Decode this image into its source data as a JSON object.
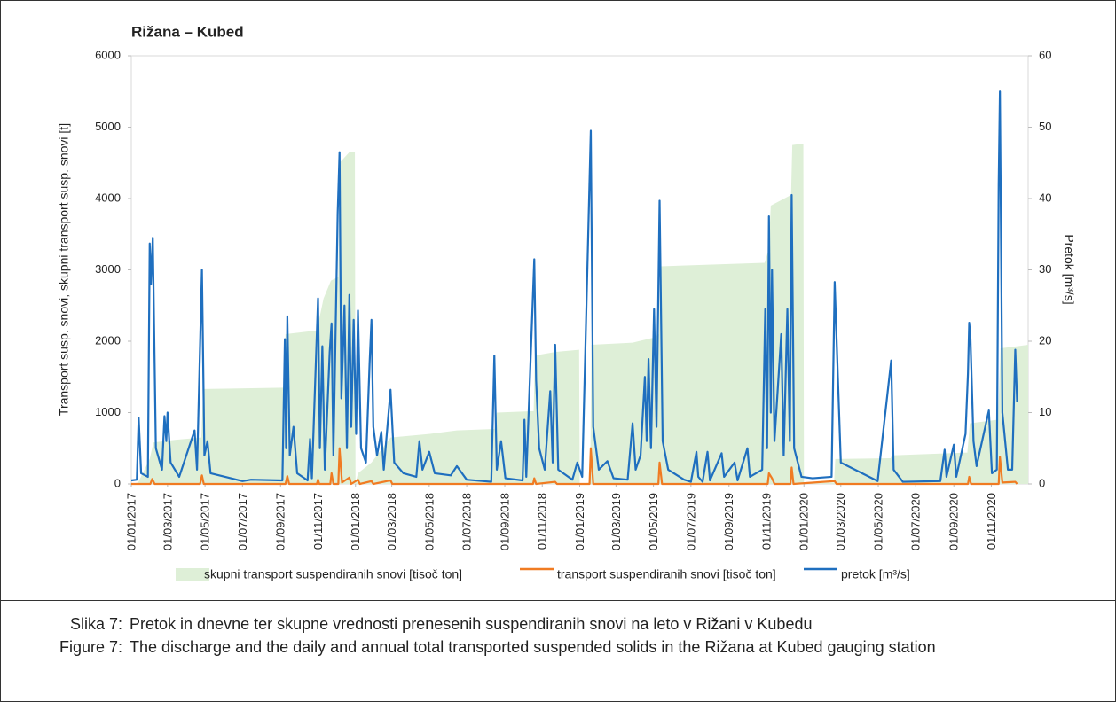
{
  "chart_data": {
    "type": "line",
    "title": "Rižana – Kubed",
    "ylabel": "Transport susp. snovi, skupni transport susp. snovi [t]",
    "y2label": "Pretok [m³/s]",
    "xlim": [
      "01/01/2017",
      "31/12/2020"
    ],
    "xticks": [
      "01/01/2017",
      "01/03/2017",
      "01/05/2017",
      "01/07/2017",
      "01/09/2017",
      "01/11/2017",
      "01/01/2018",
      "01/03/2018",
      "01/05/2018",
      "01/07/2018",
      "01/09/2018",
      "01/11/2018",
      "01/01/2019",
      "01/03/2019",
      "01/05/2019",
      "01/07/2019",
      "01/09/2019",
      "01/11/2019",
      "01/01/2020",
      "01/03/2020",
      "01/05/2020",
      "01/07/2020",
      "01/09/2020",
      "01/11/2020"
    ],
    "ylim": [
      0,
      6000
    ],
    "yticks": [
      0,
      1000,
      2000,
      3000,
      4000,
      5000,
      6000
    ],
    "y2lim": [
      0,
      60
    ],
    "y2ticks": [
      0,
      10,
      20,
      30,
      40,
      50,
      60
    ],
    "series": [
      {
        "name": "skupni transport suspendiranih snovi [tisoč ton]",
        "kind": "area",
        "color": "#deefd7",
        "x": [
          "01/01/2017",
          "12/01/2017",
          "31/01/2017",
          "06/02/2017",
          "15/03/2017",
          "25/04/2017",
          "28/04/2017",
          "07/09/2017",
          "09/09/2017",
          "30/10/2017",
          "10/11/2017",
          "22/11/2017",
          "04/12/2017",
          "06/12/2017",
          "22/12/2017",
          "31/12/2017",
          "01/01/2018",
          "05/01/2018",
          "27/01/2018",
          "27/02/2018",
          "01/05/2018",
          "15/06/2018",
          "15/08/2018",
          "19/08/2018",
          "18/10/2018",
          "20/10/2018",
          "22/11/2018",
          "31/12/2018",
          "01/01/2019",
          "18/01/2019",
          "20/01/2019",
          "28/03/2019",
          "01/05/2019",
          "10/05/2019",
          "12/05/2019",
          "29/10/2019",
          "05/11/2019",
          "08/11/2019",
          "11/12/2019",
          "13/12/2019",
          "31/12/2019",
          "01/01/2020",
          "19/02/2020",
          "21/02/2020",
          "21/05/2020",
          "23/05/2020",
          "23/09/2020",
          "27/09/2020",
          "12/11/2020",
          "16/11/2020",
          "31/12/2020"
        ],
        "values": [
          0,
          20,
          350,
          580,
          620,
          650,
          1330,
          1350,
          2100,
          2150,
          2600,
          2850,
          2900,
          4500,
          4650,
          4650,
          0,
          150,
          300,
          650,
          700,
          750,
          770,
          1000,
          1020,
          1800,
          1850,
          1880,
          0,
          20,
          1950,
          1980,
          2050,
          2100,
          3050,
          3100,
          3300,
          3900,
          4050,
          4750,
          4770,
          0,
          20,
          350,
          360,
          400,
          440,
          850,
          900,
          1900,
          1950
        ]
      },
      {
        "name": "transport suspendiranih snovi [tisoč ton]",
        "kind": "line",
        "color": "#f07b22",
        "x": [
          "01/01/2017",
          "01/02/2017",
          "04/02/2017",
          "08/02/2017",
          "23/04/2017",
          "26/04/2017",
          "29/04/2017",
          "09/09/2017",
          "12/09/2017",
          "15/09/2017",
          "30/10/2017",
          "01/11/2017",
          "03/11/2017",
          "21/11/2017",
          "23/11/2017",
          "26/11/2017",
          "04/12/2017",
          "06/12/2017",
          "10/12/2017",
          "22/12/2017",
          "25/12/2017",
          "05/01/2018",
          "08/01/2018",
          "27/01/2018",
          "30/01/2018",
          "27/02/2018",
          "02/03/2018",
          "17/10/2018",
          "19/10/2018",
          "22/10/2018",
          "22/11/2018",
          "25/11/2018",
          "17/01/2019",
          "19/01/2019",
          "23/01/2019",
          "09/05/2019",
          "11/05/2019",
          "15/05/2019",
          "03/11/2019",
          "05/11/2019",
          "10/11/2019",
          "14/11/2019",
          "10/12/2019",
          "12/12/2019",
          "15/12/2019",
          "20/02/2020",
          "23/02/2020",
          "24/09/2020",
          "26/09/2020",
          "29/09/2020",
          "13/11/2020",
          "15/11/2020",
          "19/11/2020",
          "10/12/2020",
          "13/12/2020"
        ],
        "values": [
          0,
          0,
          70,
          0,
          0,
          120,
          0,
          0,
          110,
          0,
          0,
          60,
          0,
          0,
          150,
          0,
          0,
          500,
          20,
          90,
          0,
          60,
          0,
          40,
          0,
          50,
          0,
          0,
          80,
          0,
          30,
          0,
          0,
          500,
          0,
          0,
          300,
          0,
          0,
          150,
          80,
          0,
          0,
          230,
          0,
          40,
          0,
          0,
          100,
          0,
          0,
          380,
          20,
          30,
          0
        ]
      },
      {
        "name": "pretok  [m³/s]",
        "kind": "line",
        "axis": "y2",
        "color": "#1f6fbf",
        "x": [
          "01/01/2017",
          "10/01/2017",
          "13/01/2017",
          "17/01/2017",
          "28/01/2017",
          "31/01/2017",
          "02/02/2017",
          "05/02/2017",
          "10/02/2017",
          "20/02/2017",
          "24/02/2017",
          "27/02/2017",
          "01/03/2017",
          "06/03/2017",
          "20/03/2017",
          "14/04/2017",
          "18/04/2017",
          "26/04/2017",
          "30/04/2017",
          "05/05/2017",
          "10/05/2017",
          "01/07/2017",
          "15/07/2017",
          "04/09/2017",
          "08/09/2017",
          "10/09/2017",
          "12/09/2017",
          "16/09/2017",
          "22/09/2017",
          "28/09/2017",
          "15/10/2017",
          "19/10/2017",
          "22/10/2017",
          "01/11/2017",
          "04/11/2017",
          "08/11/2017",
          "12/11/2017",
          "20/11/2017",
          "23/11/2017",
          "26/11/2017",
          "03/12/2017",
          "06/12/2017",
          "09/12/2017",
          "14/12/2017",
          "18/12/2017",
          "22/12/2017",
          "25/12/2017",
          "29/12/2017",
          "02/01/2018",
          "05/01/2018",
          "10/01/2018",
          "18/01/2018",
          "24/01/2018",
          "27/01/2018",
          "30/01/2018",
          "05/02/2018",
          "12/02/2018",
          "16/02/2018",
          "27/02/2018",
          "05/03/2018",
          "20/03/2018",
          "10/04/2018",
          "15/04/2018",
          "20/04/2018",
          "01/05/2018",
          "10/05/2018",
          "05/06/2018",
          "15/06/2018",
          "01/07/2018",
          "10/08/2018",
          "15/08/2018",
          "19/08/2018",
          "26/08/2018",
          "02/09/2018",
          "30/09/2018",
          "03/10/2018",
          "06/10/2018",
          "19/10/2018",
          "22/10/2018",
          "27/10/2018",
          "05/11/2018",
          "14/11/2018",
          "18/11/2018",
          "22/11/2018",
          "27/11/2018",
          "20/12/2018",
          "28/12/2018",
          "05/01/2019",
          "19/01/2019",
          "23/01/2019",
          "01/02/2019",
          "15/02/2019",
          "25/02/2019",
          "20/03/2019",
          "28/03/2019",
          "02/04/2019",
          "10/04/2019",
          "17/04/2019",
          "20/04/2019",
          "23/04/2019",
          "27/04/2019",
          "02/05/2019",
          "06/05/2019",
          "11/05/2019",
          "16/05/2019",
          "25/05/2019",
          "20/06/2019",
          "01/07/2019",
          "10/07/2019",
          "13/07/2019",
          "20/07/2019",
          "28/07/2019",
          "01/08/2019",
          "20/08/2019",
          "24/08/2019",
          "10/09/2019",
          "15/09/2019",
          "01/10/2019",
          "05/10/2019",
          "25/10/2019",
          "30/10/2019",
          "02/11/2019",
          "05/11/2019",
          "08/11/2019",
          "10/11/2019",
          "14/11/2019",
          "25/11/2019",
          "29/11/2019",
          "05/12/2019",
          "09/12/2019",
          "12/12/2019",
          "16/12/2019",
          "28/12/2019",
          "15/01/2020",
          "15/02/2020",
          "20/02/2020",
          "24/02/2020",
          "01/03/2020",
          "30/04/2020",
          "22/05/2020",
          "26/05/2020",
          "10/06/2020",
          "10/08/2020",
          "17/08/2020",
          "20/08/2020",
          "01/09/2020",
          "05/09/2020",
          "20/09/2020",
          "24/09/2020",
          "26/09/2020",
          "28/09/2020",
          "03/10/2020",
          "08/10/2020",
          "28/10/2020",
          "02/11/2020",
          "10/11/2020",
          "13/11/2020",
          "15/11/2020",
          "19/11/2020",
          "28/11/2020",
          "05/12/2020",
          "10/12/2020",
          "13/12/2020"
        ],
        "values": [
          0.5,
          0.6,
          9.3,
          1.5,
          1,
          33.7,
          28,
          34.5,
          5,
          2,
          9.5,
          6,
          10,
          3,
          1,
          7.5,
          2,
          30,
          4,
          6,
          1.5,
          0.4,
          0.6,
          0.5,
          20.3,
          5,
          23.5,
          4,
          8,
          1.5,
          0.5,
          6.3,
          0.8,
          26,
          5,
          19.3,
          2,
          18.5,
          22.5,
          4,
          38,
          46.5,
          12,
          25,
          5,
          26.5,
          8,
          23,
          7,
          24.3,
          5,
          3,
          17,
          23,
          8,
          4,
          7.3,
          2,
          13.2,
          3,
          1.5,
          1,
          6,
          2,
          4.5,
          1.5,
          1.2,
          2.5,
          0.6,
          0.3,
          18,
          2,
          6,
          0.8,
          0.5,
          9,
          1,
          31.5,
          14.5,
          5,
          2,
          13,
          3,
          19.5,
          2,
          0.6,
          3,
          1,
          49.5,
          8,
          2,
          3.2,
          0.8,
          0.6,
          8.5,
          2,
          4,
          15,
          6,
          17.5,
          5,
          24.5,
          8,
          39.7,
          6,
          2,
          0.6,
          0.3,
          4.5,
          1,
          0.3,
          4.5,
          0.5,
          4.3,
          1,
          3,
          0.5,
          5,
          1,
          2,
          24.5,
          5,
          37.5,
          10,
          30,
          6,
          21,
          4,
          24.5,
          6,
          40.5,
          5,
          1,
          0.8,
          1,
          28.3,
          18,
          3,
          0.4,
          17.3,
          2,
          0.3,
          0.4,
          4.8,
          1,
          5.5,
          1,
          7,
          15.5,
          22.6,
          20.5,
          6,
          2.5,
          10.3,
          1.5,
          2,
          42,
          55,
          10,
          2,
          2,
          18.8,
          11.5
        ]
      }
    ]
  },
  "caption": [
    {
      "label": "Slika 7:",
      "text": "Pretok in dnevne ter skupne vrednosti prenesenih suspendiranih snovi na leto v Rižani v Kubedu"
    },
    {
      "label": "Figure 7:",
      "text": "The discharge and the daily and annual total transported suspended solids in the Rižana at Kubed gauging station"
    }
  ]
}
